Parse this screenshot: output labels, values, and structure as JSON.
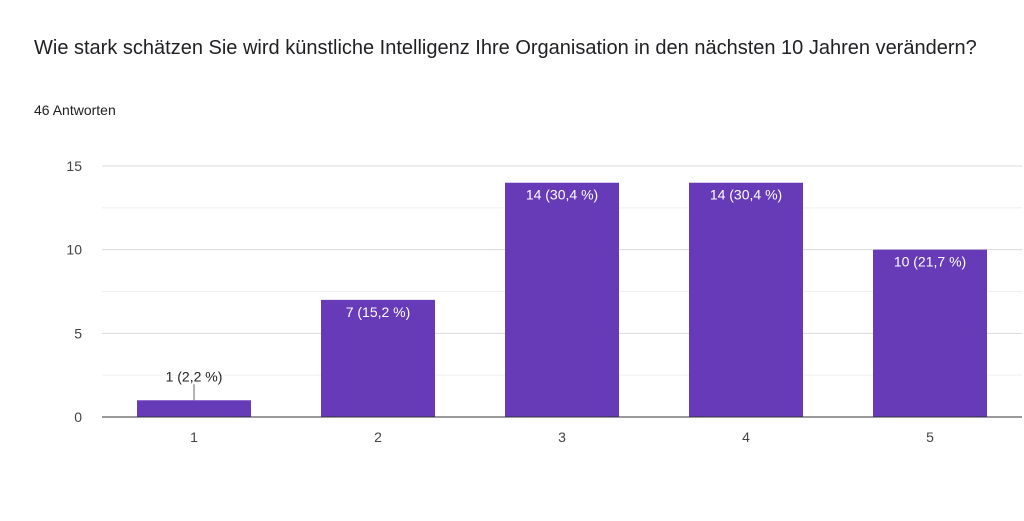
{
  "header": {
    "title": "Wie stark schätzen Sie wird künstliche Intelligenz Ihre Organisation in den nächsten 10 Jahren verändern?",
    "responses": "46 Antworten"
  },
  "colors": {
    "bar": "#673ab7",
    "grid": "#e6e6e6",
    "axis": "#333333",
    "label_inside": "#ffffff",
    "label_outside": "#222222"
  },
  "chart_data": {
    "type": "bar",
    "categories": [
      "1",
      "2",
      "3",
      "4",
      "5"
    ],
    "values": [
      1,
      7,
      14,
      14,
      10
    ],
    "data_labels": [
      "1 (2,2 %)",
      "7 (15,2 %)",
      "14 (30,4 %)",
      "14 (30,4 %)",
      "10 (21,7 %)"
    ],
    "y_ticks": [
      "0",
      "5",
      "10",
      "15"
    ],
    "ylim": [
      0,
      15
    ],
    "grid": true
  }
}
